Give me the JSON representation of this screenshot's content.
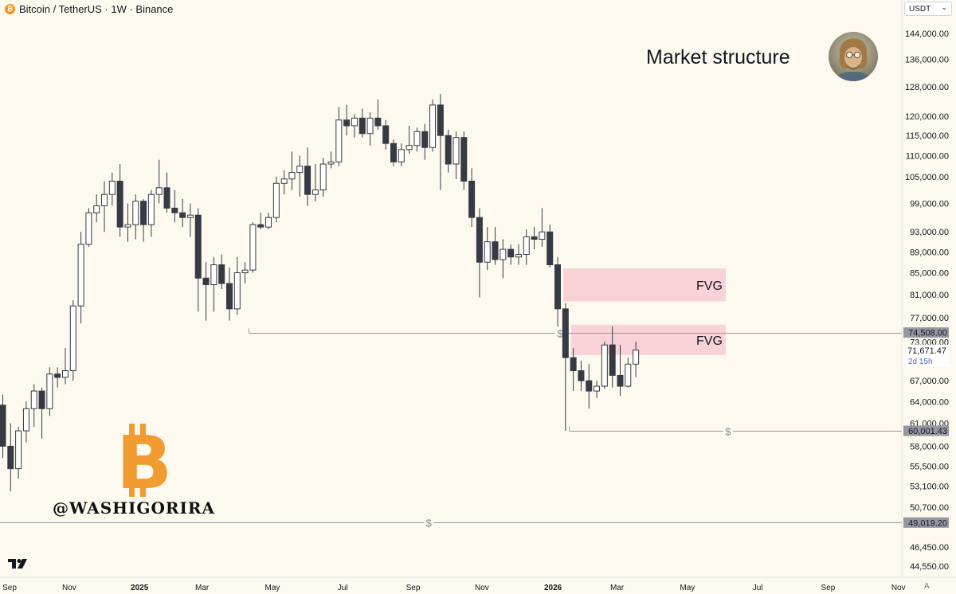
{
  "header": {
    "symbol_badge": "₿",
    "symbol_title": "Bitcoin / TetherUS · 1W · Binance"
  },
  "currency_selector": {
    "value": "USDT",
    "chevron": "⌄"
  },
  "annotation_title": "Market structure",
  "watermark_text": "@WASHIGORIRA",
  "big_logo_letter": "B",
  "auto_button": "A",
  "colors": {
    "bg": "#fdf9ee",
    "bull_fill": "#ffffff",
    "bear_fill": "#363a45",
    "wick": "#363a45",
    "fvg": "#f5c4cf",
    "btc_orange": "#f29b30",
    "level_line": "#9598a1",
    "axis_text": "#131722"
  },
  "chart_data": {
    "type": "candlestick",
    "title": "Bitcoin / TetherUS · 1W · Binance",
    "ylim": [
      44000,
      150000
    ],
    "y_ticks": [
      144000,
      136000,
      128000,
      120000,
      115000,
      110000,
      105000,
      99000,
      93000,
      89000,
      85000,
      81000,
      77000,
      73000,
      67000,
      64000,
      61000,
      58000,
      55500,
      53100,
      50700,
      46450,
      44550
    ],
    "y_tick_labels": [
      "144,000.00",
      "136,000.00",
      "128,000.00",
      "120,000.00",
      "115,000.00",
      "110,000.00",
      "105,000.00",
      "99,000.00",
      "93,000.00",
      "89,000.00",
      "85,000.00",
      "81,000.00",
      "77,000.00",
      "73,000.00",
      "67,000.00",
      "64,000.00",
      "61,000.00",
      "58,000.00",
      "55,500.00",
      "53,100.00",
      "50,700.00",
      "46,450.00",
      "44,550.00"
    ],
    "x_labels": [
      {
        "label": "Sep",
        "bar": -0.5,
        "bold": false
      },
      {
        "label": "Nov",
        "bar": 8.5,
        "bold": false
      },
      {
        "label": "2025",
        "bar": 17.5,
        "bold": true
      },
      {
        "label": "Mar",
        "bar": 25.5,
        "bold": false
      },
      {
        "label": "May",
        "bar": 34.5,
        "bold": false
      },
      {
        "label": "Jul",
        "bar": 43.5,
        "bold": false
      },
      {
        "label": "Sep",
        "bar": 52.5,
        "bold": false
      },
      {
        "label": "Nov",
        "bar": 61.3,
        "bold": false
      },
      {
        "label": "2026",
        "bar": 70.4,
        "bold": true
      },
      {
        "label": "Mar",
        "bar": 78.6,
        "bold": false
      },
      {
        "label": "May",
        "bar": 87.6,
        "bold": false
      },
      {
        "label": "Jul",
        "bar": 96.6,
        "bold": false
      },
      {
        "label": "Sep",
        "bar": 105.6,
        "bold": false
      },
      {
        "label": "Nov",
        "bar": 114.6,
        "bold": false
      }
    ],
    "candles": [
      {
        "o": 63500,
        "h": 65000,
        "l": 56500,
        "c": 58000
      },
      {
        "o": 58000,
        "h": 61000,
        "l": 52500,
        "c": 55200
      },
      {
        "o": 55200,
        "h": 60500,
        "l": 54000,
        "c": 60000
      },
      {
        "o": 60000,
        "h": 64000,
        "l": 58500,
        "c": 63000
      },
      {
        "o": 63000,
        "h": 66500,
        "l": 60500,
        "c": 65500
      },
      {
        "o": 65500,
        "h": 66000,
        "l": 59000,
        "c": 63000
      },
      {
        "o": 63000,
        "h": 69000,
        "l": 62000,
        "c": 68000
      },
      {
        "o": 68000,
        "h": 69000,
        "l": 66000,
        "c": 67500
      },
      {
        "o": 67500,
        "h": 72000,
        "l": 66500,
        "c": 68500
      },
      {
        "o": 68500,
        "h": 80000,
        "l": 67000,
        "c": 79000
      },
      {
        "o": 79000,
        "h": 93000,
        "l": 76000,
        "c": 90500
      },
      {
        "o": 90500,
        "h": 98000,
        "l": 90000,
        "c": 97000
      },
      {
        "o": 97000,
        "h": 101000,
        "l": 95000,
        "c": 98500
      },
      {
        "o": 98500,
        "h": 104000,
        "l": 93000,
        "c": 101000
      },
      {
        "o": 101000,
        "h": 106000,
        "l": 98500,
        "c": 104000
      },
      {
        "o": 104000,
        "h": 108000,
        "l": 92000,
        "c": 94000
      },
      {
        "o": 94000,
        "h": 99000,
        "l": 91000,
        "c": 94500
      },
      {
        "o": 94500,
        "h": 101000,
        "l": 91500,
        "c": 99500
      },
      {
        "o": 99500,
        "h": 100000,
        "l": 91000,
        "c": 94500
      },
      {
        "o": 94500,
        "h": 102000,
        "l": 92000,
        "c": 101000
      },
      {
        "o": 101000,
        "h": 109000,
        "l": 99000,
        "c": 102500
      },
      {
        "o": 102500,
        "h": 106000,
        "l": 97000,
        "c": 98000
      },
      {
        "o": 98000,
        "h": 102000,
        "l": 95000,
        "c": 97000
      },
      {
        "o": 97000,
        "h": 100000,
        "l": 94000,
        "c": 96000
      },
      {
        "o": 96000,
        "h": 99000,
        "l": 92000,
        "c": 96500
      },
      {
        "o": 96500,
        "h": 98000,
        "l": 78000,
        "c": 84000
      },
      {
        "o": 84000,
        "h": 87000,
        "l": 76500,
        "c": 82800
      },
      {
        "o": 82800,
        "h": 88000,
        "l": 78000,
        "c": 86500
      },
      {
        "o": 86500,
        "h": 88500,
        "l": 82000,
        "c": 83000
      },
      {
        "o": 83000,
        "h": 86000,
        "l": 76500,
        "c": 78500
      },
      {
        "o": 78500,
        "h": 88000,
        "l": 77500,
        "c": 85000
      },
      {
        "o": 85000,
        "h": 87000,
        "l": 83000,
        "c": 85500
      },
      {
        "o": 85500,
        "h": 95000,
        "l": 85000,
        "c": 94500
      },
      {
        "o": 94500,
        "h": 97000,
        "l": 93500,
        "c": 94000
      },
      {
        "o": 94000,
        "h": 97000,
        "l": 93500,
        "c": 96000
      },
      {
        "o": 96000,
        "h": 105000,
        "l": 95000,
        "c": 103500
      },
      {
        "o": 103500,
        "h": 106500,
        "l": 101000,
        "c": 104500
      },
      {
        "o": 104500,
        "h": 111000,
        "l": 102000,
        "c": 106000
      },
      {
        "o": 106000,
        "h": 110000,
        "l": 100500,
        "c": 107500
      },
      {
        "o": 107500,
        "h": 112000,
        "l": 98500,
        "c": 101000
      },
      {
        "o": 101000,
        "h": 108000,
        "l": 99500,
        "c": 102000
      },
      {
        "o": 102000,
        "h": 109500,
        "l": 100500,
        "c": 108000
      },
      {
        "o": 108000,
        "h": 111000,
        "l": 107000,
        "c": 108500
      },
      {
        "o": 108500,
        "h": 122500,
        "l": 107500,
        "c": 119000
      },
      {
        "o": 119000,
        "h": 123000,
        "l": 115000,
        "c": 117500
      },
      {
        "o": 117500,
        "h": 120500,
        "l": 114500,
        "c": 119500
      },
      {
        "o": 119500,
        "h": 122000,
        "l": 114500,
        "c": 115500
      },
      {
        "o": 115500,
        "h": 121000,
        "l": 112500,
        "c": 119500
      },
      {
        "o": 119500,
        "h": 124500,
        "l": 116500,
        "c": 117500
      },
      {
        "o": 117500,
        "h": 119000,
        "l": 111500,
        "c": 113000
      },
      {
        "o": 113000,
        "h": 114000,
        "l": 107500,
        "c": 108500
      },
      {
        "o": 108500,
        "h": 113000,
        "l": 107500,
        "c": 111500
      },
      {
        "o": 111500,
        "h": 117500,
        "l": 110500,
        "c": 112500
      },
      {
        "o": 112500,
        "h": 117000,
        "l": 111000,
        "c": 116000
      },
      {
        "o": 116000,
        "h": 118000,
        "l": 109000,
        "c": 112000
      },
      {
        "o": 112000,
        "h": 124500,
        "l": 111000,
        "c": 123000
      },
      {
        "o": 123000,
        "h": 126000,
        "l": 102000,
        "c": 115000
      },
      {
        "o": 115000,
        "h": 116500,
        "l": 106000,
        "c": 108000
      },
      {
        "o": 108000,
        "h": 116000,
        "l": 104500,
        "c": 114500
      },
      {
        "o": 114500,
        "h": 116000,
        "l": 102000,
        "c": 104000
      },
      {
        "o": 104000,
        "h": 107000,
        "l": 94000,
        "c": 96000
      },
      {
        "o": 96000,
        "h": 98000,
        "l": 80500,
        "c": 87000
      },
      {
        "o": 87000,
        "h": 94000,
        "l": 85500,
        "c": 91000
      },
      {
        "o": 91000,
        "h": 94000,
        "l": 86500,
        "c": 87500
      },
      {
        "o": 87500,
        "h": 91500,
        "l": 84000,
        "c": 89500
      },
      {
        "o": 89500,
        "h": 90500,
        "l": 86500,
        "c": 88000
      },
      {
        "o": 88000,
        "h": 90500,
        "l": 86500,
        "c": 88500
      },
      {
        "o": 88500,
        "h": 93500,
        "l": 86500,
        "c": 92000
      },
      {
        "o": 92000,
        "h": 94000,
        "l": 89500,
        "c": 91500
      },
      {
        "o": 91500,
        "h": 98000,
        "l": 90000,
        "c": 93000
      },
      {
        "o": 93000,
        "h": 94500,
        "l": 86000,
        "c": 86500
      },
      {
        "o": 86500,
        "h": 88000,
        "l": 75500,
        "c": 78500
      },
      {
        "o": 78500,
        "h": 79500,
        "l": 60000,
        "c": 70500
      },
      {
        "o": 70500,
        "h": 72000,
        "l": 65500,
        "c": 68500
      },
      {
        "o": 68500,
        "h": 70000,
        "l": 65500,
        "c": 67000
      },
      {
        "o": 67000,
        "h": 69500,
        "l": 63000,
        "c": 65500
      },
      {
        "o": 65500,
        "h": 67000,
        "l": 64500,
        "c": 66200
      },
      {
        "o": 66200,
        "h": 73000,
        "l": 65800,
        "c": 72500
      },
      {
        "o": 72500,
        "h": 75500,
        "l": 66000,
        "c": 67800
      },
      {
        "o": 67800,
        "h": 72500,
        "l": 64800,
        "c": 66200
      },
      {
        "o": 66200,
        "h": 70500,
        "l": 66000,
        "c": 69500
      },
      {
        "o": 69500,
        "h": 73000,
        "l": 67500,
        "c": 71671
      }
    ],
    "fvg_zones": [
      {
        "label": "FVG",
        "top": 85800,
        "bottom": 79800,
        "start_bar": 71.7,
        "end_bar": 92.5
      },
      {
        "label": "FVG",
        "top": 75800,
        "bottom": 70900,
        "start_bar": 72.7,
        "end_bar": 92.5
      }
    ],
    "horizontal_levels": [
      {
        "price": 74508,
        "start_bar": 31.5,
        "end_bar": 120,
        "label": "74,508.00",
        "marker_bar": 71.3,
        "marker": "$"
      },
      {
        "price": 60001.43,
        "start_bar": 72.5,
        "end_bar": 120,
        "label": "60,001.43",
        "marker_bar": 92.8,
        "marker": "$"
      },
      {
        "price": 49019.2,
        "start_bar": -1.5,
        "end_bar": 120,
        "label": "49,019.20",
        "marker_bar": 54.5,
        "marker": "$"
      }
    ],
    "last_price": {
      "value": 71671.47,
      "label": "71,671.47",
      "countdown": "2d 15h"
    }
  }
}
